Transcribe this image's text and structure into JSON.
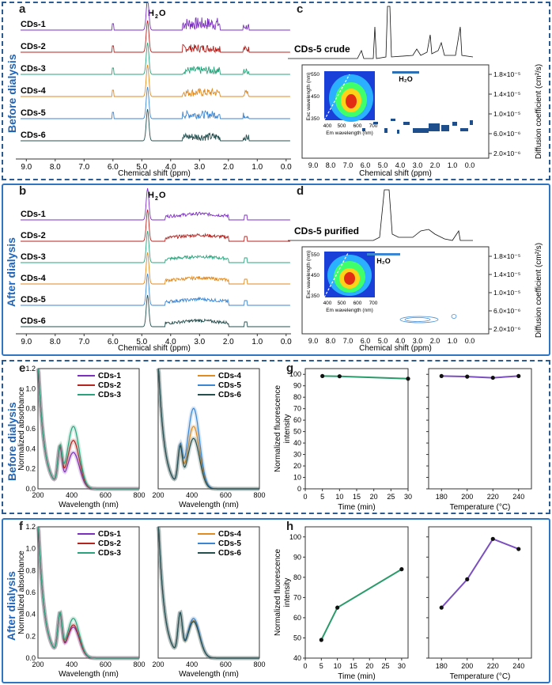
{
  "sections": {
    "before": "Before dialysis",
    "after": "After dialysis",
    "before2": "Before dialysis",
    "after2": "After dialysis"
  },
  "panel_labels": [
    "a",
    "b",
    "c",
    "d",
    "e",
    "f",
    "g",
    "h"
  ],
  "nmr": {
    "water": "H",
    "water_sub": "2",
    "water_end": "O",
    "xlabel": "Chemical shift (ppm)",
    "ticks": [
      "9.0",
      "8.0",
      "7.0",
      "6.0",
      "5.0",
      "4.0",
      "3.0",
      "2.0",
      "1.0",
      "0.0"
    ],
    "samples": [
      "CDs-1",
      "CDs-2",
      "CDs-3",
      "CDs-4",
      "CDs-5",
      "CDs-6"
    ],
    "colors": [
      "#7b2fbf",
      "#b5231f",
      "#2aa37c",
      "#e08a20",
      "#3a86d4",
      "#254f4f"
    ]
  },
  "dosy": {
    "crude_title": "CDs-5 crude",
    "purified_title": "CDs-5 purified",
    "xlabel": "Chemical shift (ppm)",
    "ylabel": "Diffusion coefficient (cm²/s)",
    "xticks": [
      "9.0",
      "8.0",
      "7.0",
      "6.0",
      "5.0",
      "4.0",
      "3.0",
      "2.0",
      "1.0",
      "0.0"
    ],
    "yticks": [
      "1.8×10⁻⁵",
      "1.4×10⁻⁵",
      "1.0×10⁻⁵",
      "6.0×10⁻⁶",
      "2.0×10⁻⁶"
    ],
    "inset_xlabel": "Em wavelength (nm)",
    "inset_ylabel": "Exc wavelength (nm)",
    "inset_xticks": [
      "400",
      "500",
      "600",
      "700"
    ],
    "inset_yticks": [
      "550",
      "450",
      "350"
    ]
  },
  "absorbance": {
    "ylabel": "Normalized absorbance",
    "xlabel": "Wavelength (nm)",
    "xticks": [
      "200",
      "400",
      "600",
      "800"
    ],
    "yticks": [
      "0.0",
      "0.2",
      "0.4",
      "0.6",
      "0.8",
      "1.0",
      "1.2"
    ],
    "legend_left": [
      "CDs-1",
      "CDs-2",
      "CDs-3"
    ],
    "legend_right": [
      "CDs-4",
      "CDs-5",
      "CDs-6"
    ]
  },
  "chart_data": [
    {
      "type": "line",
      "id": "g-time",
      "title": "",
      "xlabel": "Time (min)",
      "ylabel": "Normalized fluorescence intensity",
      "x": [
        5,
        10,
        30
      ],
      "values": [
        98.5,
        98.3,
        96.2
      ],
      "xlim": [
        0,
        30
      ],
      "ylim": [
        0,
        105
      ],
      "xticks": [
        "0",
        "5",
        "10",
        "15",
        "20",
        "25",
        "30"
      ],
      "yticks": [
        "0",
        "10",
        "20",
        "30",
        "40",
        "50",
        "60",
        "70",
        "80",
        "90",
        "100"
      ],
      "color": "#2a9b6a"
    },
    {
      "type": "line",
      "id": "g-temp",
      "title": "",
      "xlabel": "Temperature (°C)",
      "ylabel": "",
      "x": [
        180,
        200,
        220,
        240
      ],
      "values": [
        98.5,
        98.0,
        97.0,
        98.5
      ],
      "xlim": [
        170,
        250
      ],
      "ylim": [
        0,
        105
      ],
      "xticks": [
        "180",
        "200",
        "220",
        "240"
      ],
      "color": "#7b4fbf"
    },
    {
      "type": "line",
      "id": "h-time",
      "title": "",
      "xlabel": "Time (min)",
      "ylabel": "Normalized fluorescence intensity",
      "x": [
        5,
        10,
        30
      ],
      "values": [
        49,
        65,
        84
      ],
      "xlim": [
        0,
        32
      ],
      "ylim": [
        40,
        105
      ],
      "xticks": [
        "0",
        "5",
        "10",
        "15",
        "20",
        "25",
        "30"
      ],
      "yticks": [
        "40",
        "50",
        "60",
        "70",
        "80",
        "90",
        "100"
      ],
      "color": "#2a9b6a"
    },
    {
      "type": "line",
      "id": "h-temp",
      "title": "",
      "xlabel": "Temperature (°C)",
      "ylabel": "",
      "x": [
        180,
        200,
        220,
        240
      ],
      "values": [
        65,
        79,
        99,
        94
      ],
      "xlim": [
        170,
        250
      ],
      "ylim": [
        40,
        105
      ],
      "xticks": [
        "180",
        "200",
        "220",
        "240"
      ],
      "color": "#7b4fbf"
    }
  ]
}
